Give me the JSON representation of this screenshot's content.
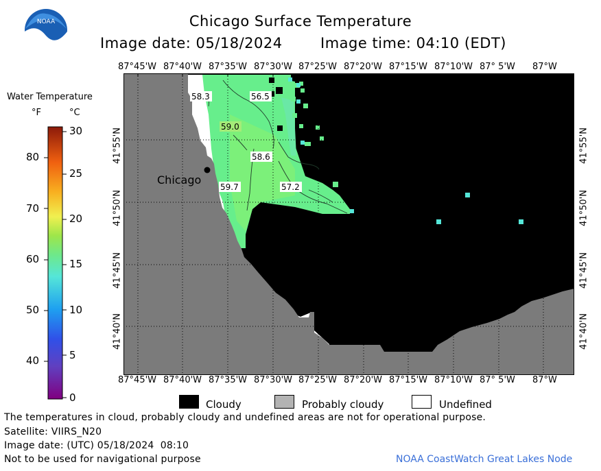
{
  "header": {
    "title": "Chicago Surface Temperature",
    "image_date_label": "Image date: 05/18/2024",
    "image_time_label": "Image time: 04:10 (EDT)"
  },
  "logo": {
    "text": "NOAA"
  },
  "colorbar": {
    "title": "Water Temperature",
    "unit_f": "°F",
    "unit_c": "°C",
    "f_ticks": [
      "80",
      "70",
      "60",
      "50",
      "40"
    ],
    "c_ticks": [
      "30",
      "25",
      "20",
      "15",
      "10",
      "5",
      "0"
    ]
  },
  "map": {
    "lon_labels": [
      "87°45'W",
      "87°40'W",
      "87°35'W",
      "87°30'W",
      "87°25'W",
      "87°20'W",
      "87°15'W",
      "87°10'W",
      "87° 5'W",
      "87°W"
    ],
    "lat_labels": [
      "41°55'N",
      "41°50'N",
      "41°45'N",
      "41°40'N"
    ],
    "city": "Chicago",
    "temps": [
      "58.3",
      "56.5",
      "59.0",
      "58.6",
      "59.7",
      "57.2"
    ],
    "colors": {
      "land": "#7b7b7b",
      "cloud": "#000000",
      "water": "#67ee8c",
      "undefined": "#ffffff"
    }
  },
  "legend": {
    "cloudy": "Cloudy",
    "probably_cloudy": "Probably cloudy",
    "undefined": "Undefined"
  },
  "footer": {
    "disclaimer": "The temperatures in cloud, probably cloudy and undefined areas are not for operational purpose.",
    "satellite": "Satellite: VIIRS_N20",
    "utc_date": "Image date: (UTC) 05/18/2024  08:10",
    "nav_note": "Not to be used for navigational purpose",
    "credit": "NOAA CoastWatch Great Lakes Node"
  }
}
